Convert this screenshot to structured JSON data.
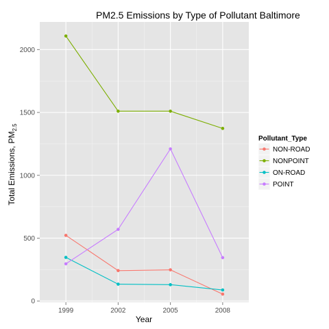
{
  "chart_data": {
    "type": "line",
    "title": "PM2.5 Emissions  by Type of Pollutant Baltimore",
    "xlabel": "Year",
    "ylabel_main": "Total Emissions, PM",
    "ylabel_sub": "2.5",
    "x": [
      1999,
      2002,
      2005,
      2008
    ],
    "x_tick_labels": [
      "1999",
      "2002",
      "2005",
      "2008"
    ],
    "y_ticks": [
      0,
      500,
      1000,
      1500,
      2000
    ],
    "y_tick_labels": [
      "0",
      "500",
      "1000",
      "1500",
      "2000"
    ],
    "xlim": [
      1997.5,
      2009.5
    ],
    "ylim": [
      -10,
      2220
    ],
    "grid": true,
    "legend_title": "Pollutant_Type",
    "legend_position": "right",
    "series": [
      {
        "name": "NON-ROAD",
        "color": "#F8766D",
        "values": [
          522,
          242,
          248,
          55
        ]
      },
      {
        "name": "NONPOINT",
        "color": "#7CAE00",
        "values": [
          2108,
          1510,
          1510,
          1373
        ]
      },
      {
        "name": "ON-ROAD",
        "color": "#00BFC4",
        "values": [
          347,
          134,
          130,
          88
        ]
      },
      {
        "name": "POINT",
        "color": "#C77CFF",
        "values": [
          296,
          570,
          1210,
          345
        ]
      }
    ],
    "panel_background": "#E5E5E5",
    "grid_color": "#FFFFFF"
  }
}
